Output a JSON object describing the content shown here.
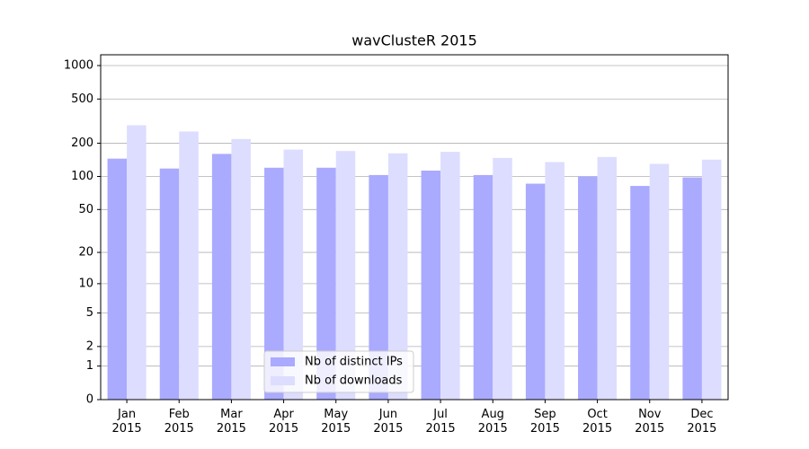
{
  "chart_data": {
    "type": "bar",
    "title": "wavClusteR 2015",
    "categories": [
      "Jan 2015",
      "Feb 2015",
      "Mar 2015",
      "Apr 2015",
      "May 2015",
      "Jun 2015",
      "Jul 2015",
      "Aug 2015",
      "Sep 2015",
      "Oct 2015",
      "Nov 2015",
      "Dec 2015"
    ],
    "series": [
      {
        "name": "Nb of distinct IPs",
        "color": "#aaaaff",
        "values": [
          145,
          118,
          160,
          120,
          120,
          103,
          113,
          103,
          86,
          100,
          82,
          98
        ]
      },
      {
        "name": "Nb of downloads",
        "color": "#ddddff",
        "values": [
          290,
          255,
          218,
          175,
          170,
          162,
          167,
          147,
          135,
          150,
          130,
          142
        ]
      }
    ],
    "yscale": "log1p",
    "ylim": [
      0,
      1250
    ],
    "yticks": [
      0,
      1,
      2,
      5,
      10,
      20,
      50,
      100,
      200,
      500,
      1000
    ],
    "grid": true,
    "legend": "lower center"
  }
}
